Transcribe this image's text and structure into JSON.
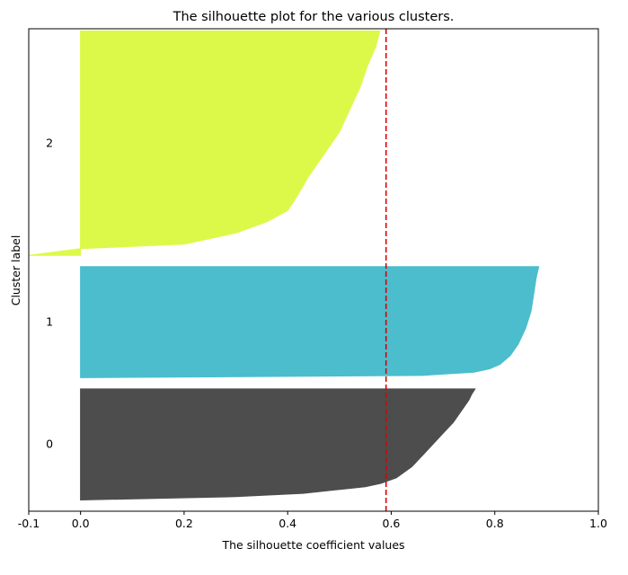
{
  "chart_data": {
    "type": "area",
    "title": "The silhouette plot for the various clusters.",
    "xlabel": "The silhouette coefficient values",
    "ylabel": "Cluster label",
    "xlim": [
      -0.1,
      1.0
    ],
    "ylim": [
      0,
      430
    ],
    "xticks": [
      "-0.1",
      "0.0",
      "0.2",
      "0.4",
      "0.6",
      "0.8",
      "1.0"
    ],
    "xtick_values": [
      -0.1,
      0.0,
      0.2,
      0.4,
      0.6,
      0.8,
      1.0
    ],
    "grid": false,
    "average_silhouette": 0.59,
    "average_line_color": "#dd0000",
    "clusters": [
      {
        "label": "0",
        "color": "#4d4d4d",
        "y_range": [
          10,
          109
        ],
        "profile": [
          [
            0.0,
            0.0
          ],
          [
            0.03,
            0.3
          ],
          [
            0.06,
            0.43
          ],
          [
            0.09,
            0.49
          ],
          [
            0.12,
            0.55
          ],
          [
            0.15,
            0.58
          ],
          [
            0.2,
            0.61
          ],
          [
            0.3,
            0.64
          ],
          [
            0.4,
            0.66
          ],
          [
            0.5,
            0.68
          ],
          [
            0.6,
            0.7
          ],
          [
            0.7,
            0.72
          ],
          [
            0.8,
            0.735
          ],
          [
            0.9,
            0.75
          ],
          [
            0.95,
            0.755
          ],
          [
            1.0,
            0.762
          ]
        ]
      },
      {
        "label": "1",
        "color": "#4bbdcd",
        "y_range": [
          119,
          218
        ],
        "profile": [
          [
            0.0,
            0.0
          ],
          [
            0.02,
            0.66
          ],
          [
            0.05,
            0.76
          ],
          [
            0.08,
            0.79
          ],
          [
            0.12,
            0.81
          ],
          [
            0.2,
            0.83
          ],
          [
            0.3,
            0.845
          ],
          [
            0.45,
            0.86
          ],
          [
            0.6,
            0.87
          ],
          [
            0.75,
            0.875
          ],
          [
            0.9,
            0.88
          ],
          [
            1.0,
            0.885
          ]
        ]
      },
      {
        "label": "2",
        "color": "#dcf94a",
        "y_range": [
          228,
          428
        ],
        "profile": [
          [
            0.0,
            -0.1
          ],
          [
            0.03,
            0.0
          ],
          [
            0.05,
            0.2
          ],
          [
            0.1,
            0.3
          ],
          [
            0.15,
            0.36
          ],
          [
            0.2,
            0.4
          ],
          [
            0.27,
            0.42
          ],
          [
            0.35,
            0.44
          ],
          [
            0.45,
            0.47
          ],
          [
            0.55,
            0.5
          ],
          [
            0.65,
            0.52
          ],
          [
            0.75,
            0.54
          ],
          [
            0.85,
            0.555
          ],
          [
            0.93,
            0.57
          ],
          [
            1.0,
            0.578
          ]
        ]
      }
    ]
  }
}
